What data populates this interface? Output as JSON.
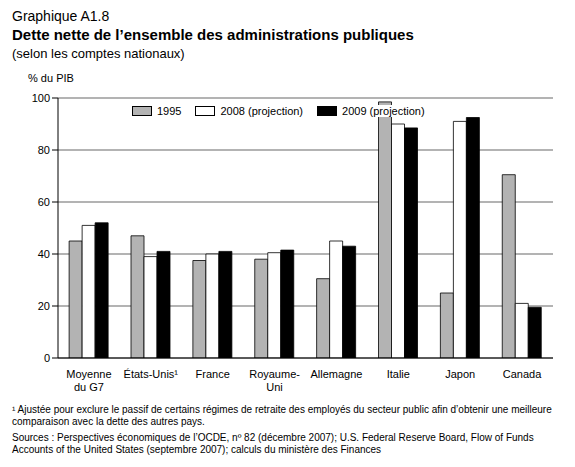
{
  "chart_data": {
    "type": "bar",
    "label": "Graphique A1.8",
    "title": "Dette nette de l’ensemble des administrations publiques",
    "subtitle": "(selon les comptes nationaux)",
    "y_label": "% du PIB",
    "categories": [
      "Moyenne\ndu G7",
      "États-Unis¹",
      "France",
      "Royaume-\nUni",
      "Allemagne",
      "Italie",
      "Japon",
      "Canada"
    ],
    "series": [
      {
        "name": "1995",
        "color": "#b3b3b3",
        "values": [
          45,
          47,
          37.5,
          38,
          30.5,
          98.5,
          25,
          70.5
        ]
      },
      {
        "name": "2008 (projection)",
        "color": "#ffffff",
        "values": [
          51,
          39,
          40,
          40.5,
          45,
          90,
          91,
          21
        ]
      },
      {
        "name": "2009 (projection)",
        "color": "#000000",
        "values": [
          52,
          41,
          41,
          41.5,
          43,
          88.5,
          92.5,
          19.5
        ]
      }
    ],
    "ylim": [
      0,
      100
    ],
    "yticks": [
      0,
      20,
      40,
      60,
      80,
      100
    ],
    "grid": true,
    "legend": "upper left",
    "footnote": "¹ Ajustée pour exclure le passif de certains régimes de retraite des employés du secteur public afin d’obtenir une meilleure comparaison avec la dette des autres pays.",
    "sources": "Sources : Perspectives économiques de l’OCDE, nº 82 (décembre 2007); U.S. Federal Reserve Board, Flow of Funds Accounts of the United States (septembre 2007); calculs du ministère des Finances"
  }
}
